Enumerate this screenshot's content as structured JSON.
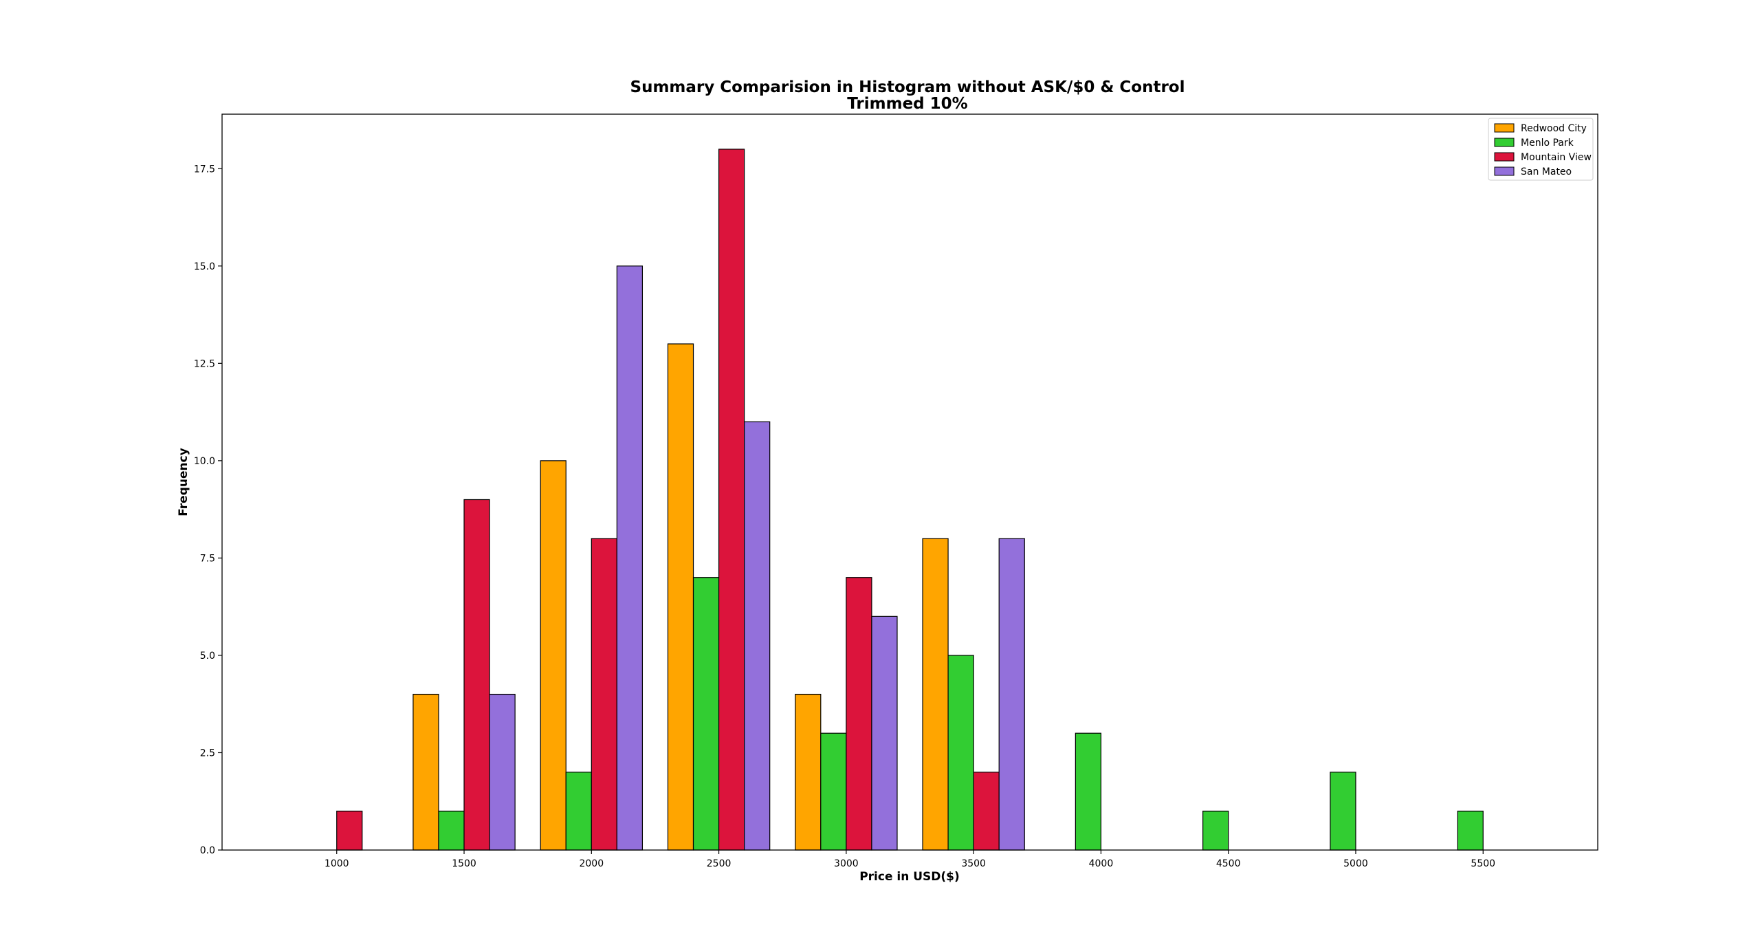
{
  "chart_data": {
    "type": "bar",
    "title": "Summary Comparision in Histogram without ASK/$0 & Control",
    "subtitle": "Trimmed 10%",
    "xlabel": "Price in USD($)",
    "ylabel": "Frequency",
    "bins": [
      1000,
      1500,
      2000,
      2500,
      3000,
      3500,
      4000,
      4500,
      5000,
      5500
    ],
    "bin_width": 500,
    "xlim": [
      550,
      5950
    ],
    "ylim": [
      0,
      18.9
    ],
    "xticks": [
      "1000",
      "1500",
      "2000",
      "2500",
      "3000",
      "3500",
      "4000",
      "4500",
      "5000",
      "5500"
    ],
    "yticks": [
      "0.0",
      "2.5",
      "5.0",
      "7.5",
      "10.0",
      "12.5",
      "15.0",
      "17.5"
    ],
    "grid": false,
    "legend_position": "top-right",
    "series": [
      {
        "name": "Redwood City",
        "color": "#FFA500",
        "values": [
          0,
          4,
          10,
          13,
          4,
          8,
          0,
          0,
          0,
          0
        ]
      },
      {
        "name": "Menlo Park",
        "color": "#32CD32",
        "values": [
          0,
          1,
          2,
          7,
          3,
          5,
          3,
          1,
          2,
          1
        ]
      },
      {
        "name": "Mountain View",
        "color": "#DC143C",
        "values": [
          1,
          9,
          8,
          18,
          7,
          2,
          0,
          0,
          0,
          0
        ]
      },
      {
        "name": "San Mateo",
        "color": "#9370DB",
        "values": [
          0,
          4,
          15,
          11,
          6,
          8,
          0,
          0,
          0,
          0
        ]
      }
    ]
  }
}
